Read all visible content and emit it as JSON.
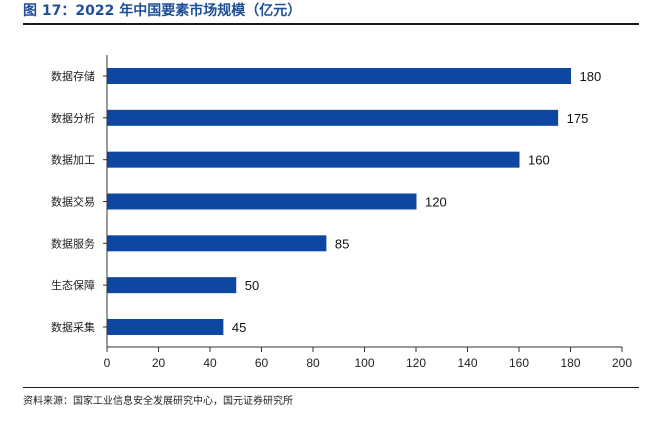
{
  "figure": {
    "title": "图 17：2022 年中国要素市场规模（亿元）",
    "source": "资料来源：国家工业信息安全发展研究中心，国元证券研究所"
  },
  "colors": {
    "bar": "#0d47a1",
    "title": "#1f4e9a"
  },
  "chart_data": {
    "type": "bar",
    "orientation": "horizontal",
    "categories": [
      "数据存储",
      "数据分析",
      "数据加工",
      "数据交易",
      "数据服务",
      "生态保障",
      "数据采集"
    ],
    "values": [
      180,
      175,
      160,
      120,
      85,
      50,
      45
    ],
    "data_labels": [
      "180",
      "175",
      "160",
      "120",
      "85",
      "50",
      "45"
    ],
    "xlim": [
      0,
      200
    ],
    "xticks": [
      0,
      20,
      40,
      60,
      80,
      100,
      120,
      140,
      160,
      180,
      200
    ],
    "xtick_labels": [
      "0",
      "20",
      "40",
      "60",
      "80",
      "100",
      "120",
      "140",
      "160",
      "180",
      "200"
    ],
    "grid": false,
    "legend": "none"
  }
}
